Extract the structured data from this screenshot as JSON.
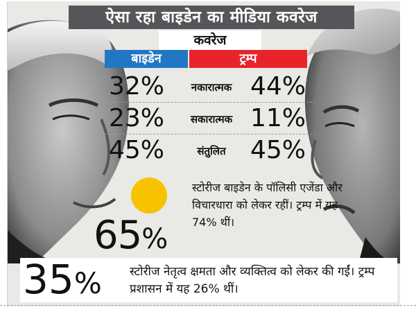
{
  "title": "ऐसा रहा बाइडेन का मीडिया कवरेज",
  "subtitle": "कवरेज",
  "columns": {
    "biden": "बाइडेन",
    "trump": "ट्रम्प"
  },
  "rows": [
    {
      "label": "नकारात्मक",
      "biden": "32%",
      "trump": "44%"
    },
    {
      "label": "सकारात्मक",
      "biden": "23%",
      "trump": "11%"
    },
    {
      "label": "संतुलित",
      "biden": "45%",
      "trump": "45%"
    }
  ],
  "stat1": {
    "number": "65",
    "percent": "%",
    "text": "स्टोरीज बाइडेन के पॉलिसी एजेंडा और विचारधारा को लेकर रहीं। ट्रम्प में यह 74% थीं।"
  },
  "stat2": {
    "number": "35",
    "percent": "%",
    "text": "स्टोरीज नेतृत्व क्षमता और व्यक्तित्व को लेकर की गईं। ट्रम्प प्रशासन में यह 26% थीं।"
  },
  "colors": {
    "biden_header": "#2277c4",
    "trump_header": "#e8242a",
    "title_bar": "#55565a",
    "accent_circle": "#f7c300"
  },
  "icons": [
    "biden-portrait",
    "trump-portrait",
    "yellow-circle-icon"
  ]
}
